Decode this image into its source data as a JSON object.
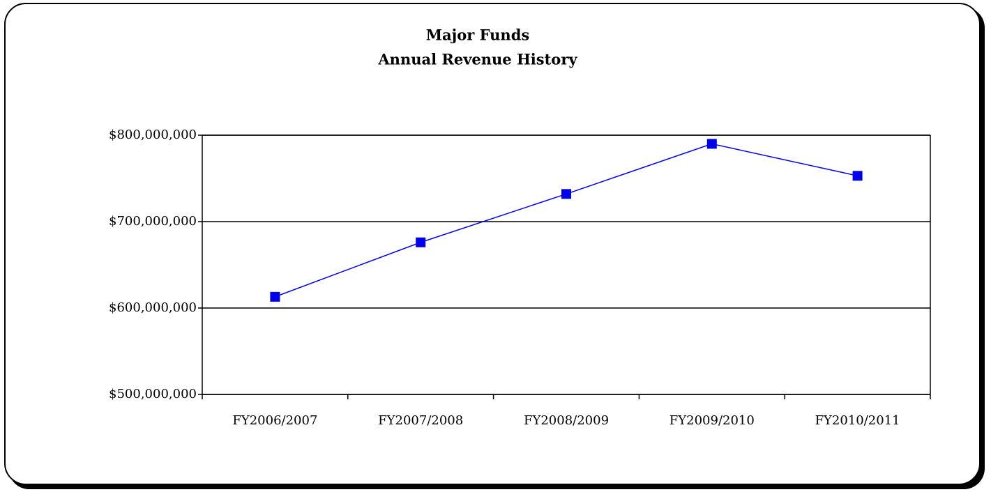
{
  "chart_data": {
    "type": "line",
    "title": "Major Funds",
    "subtitle": "Annual Revenue History",
    "categories": [
      "FY2006/2007",
      "FY2007/2008",
      "FY2008/2009",
      "FY2009/2010",
      "FY2010/2011"
    ],
    "values": [
      613000000,
      676000000,
      732000000,
      790000000,
      753000000
    ],
    "color": "#0000ee",
    "ylim": [
      500000000,
      800000000
    ],
    "yticks": [
      {
        "value": 500000000,
        "label": "$500,000,000"
      },
      {
        "value": 600000000,
        "label": "$600,000,000"
      },
      {
        "value": 700000000,
        "label": "$700,000,000"
      },
      {
        "value": 800000000,
        "label": "$800,000,000"
      }
    ],
    "grid": true
  }
}
